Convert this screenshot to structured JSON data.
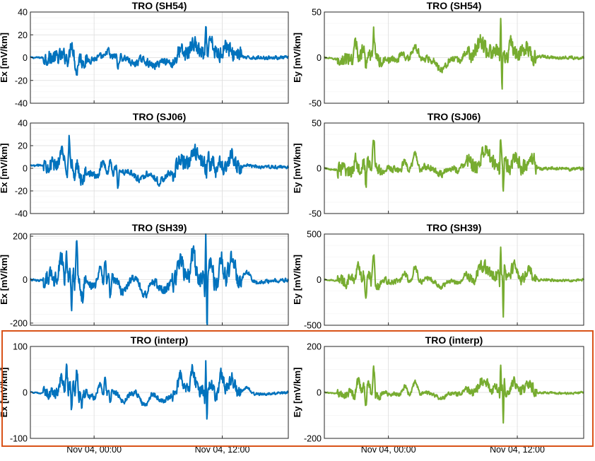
{
  "colors": {
    "ex": "#0072BD",
    "ey": "#77AC30",
    "highlight": "#D95319"
  },
  "x_tick_labels": [
    "Nov 04, 00:00",
    "Nov 04, 12:00"
  ],
  "chart_data": [
    {
      "type": "line",
      "panel": "ex-1",
      "title": "TRO (SH54)",
      "ylabel": "Ex [mV/km]",
      "ylim": [
        -40,
        40
      ],
      "yticks": [
        -40,
        -20,
        0,
        20,
        40
      ],
      "color": "ex",
      "amp": 13,
      "events": [
        [
          0.16,
          1.0,
          0.012
        ],
        [
          0.18,
          -0.9,
          0.01
        ],
        [
          0.3,
          0.4,
          0.012
        ],
        [
          0.34,
          -0.7,
          0.008
        ],
        [
          0.4,
          -0.3,
          0.03
        ],
        [
          0.48,
          -0.3,
          0.04
        ],
        [
          0.58,
          0.5,
          0.03
        ],
        [
          0.63,
          0.6,
          0.04
        ],
        [
          0.68,
          1.4,
          0.006
        ],
        [
          0.7,
          0.5,
          0.02
        ],
        [
          0.76,
          0.6,
          0.03
        ],
        [
          0.8,
          0.3,
          0.03
        ]
      ],
      "x": [
        0.0,
        0.05,
        0.1,
        0.15,
        0.2,
        0.25,
        0.3,
        0.35,
        0.4,
        0.45,
        0.5,
        0.55,
        0.6,
        0.65,
        0.7,
        0.75,
        0.8,
        0.85,
        0.9,
        0.95,
        1.0
      ],
      "values": [
        0,
        0,
        0,
        2,
        -3,
        -1,
        2,
        -1,
        -2,
        -4,
        -3,
        -4,
        3,
        5,
        7,
        4,
        2,
        0,
        0,
        0,
        0
      ]
    },
    {
      "type": "line",
      "panel": "ey-1",
      "title": "TRO (SH54)",
      "ylabel": "Ey [mV/km]",
      "ylim": [
        -50,
        50
      ],
      "yticks": [
        -50,
        0,
        50
      ],
      "color": "ey",
      "amp": 16,
      "events": [
        [
          0.12,
          0.8,
          0.015
        ],
        [
          0.16,
          -0.9,
          0.01
        ],
        [
          0.19,
          1.6,
          0.008
        ],
        [
          0.22,
          -0.5,
          0.02
        ],
        [
          0.3,
          0.4,
          0.02
        ],
        [
          0.35,
          0.5,
          0.03
        ],
        [
          0.45,
          -0.4,
          0.04
        ],
        [
          0.55,
          0.5,
          0.03
        ],
        [
          0.6,
          0.8,
          0.04
        ],
        [
          0.68,
          2.2,
          0.004
        ],
        [
          0.685,
          -2.0,
          0.004
        ],
        [
          0.72,
          0.7,
          0.02
        ],
        [
          0.78,
          0.5,
          0.03
        ]
      ],
      "x": [
        0.0,
        0.05,
        0.1,
        0.15,
        0.2,
        0.25,
        0.3,
        0.35,
        0.4,
        0.45,
        0.5,
        0.55,
        0.6,
        0.65,
        0.7,
        0.75,
        0.8,
        0.85,
        0.9,
        0.95,
        1.0
      ],
      "values": [
        0,
        -2,
        -1,
        6,
        3,
        -3,
        0,
        3,
        -2,
        -6,
        -3,
        0,
        5,
        8,
        3,
        5,
        3,
        1,
        0,
        0,
        0
      ]
    },
    {
      "type": "line",
      "panel": "ex-2",
      "title": "TRO (SJ06)",
      "ylabel": "Ex [mV/km]",
      "ylim": [
        -40,
        40
      ],
      "yticks": [
        -40,
        -20,
        0,
        20,
        40
      ],
      "color": "ex",
      "amp": 13,
      "events": [
        [
          0.12,
          0.8,
          0.02
        ],
        [
          0.15,
          1.8,
          0.006
        ],
        [
          0.17,
          -1.0,
          0.01
        ],
        [
          0.2,
          -0.5,
          0.02
        ],
        [
          0.28,
          0.6,
          0.02
        ],
        [
          0.31,
          0.7,
          0.01
        ],
        [
          0.34,
          -1.2,
          0.006
        ],
        [
          0.42,
          -0.4,
          0.04
        ],
        [
          0.5,
          -0.4,
          0.04
        ],
        [
          0.58,
          0.5,
          0.03
        ],
        [
          0.64,
          0.6,
          0.04
        ],
        [
          0.69,
          1.2,
          0.006
        ],
        [
          0.72,
          -0.7,
          0.01
        ],
        [
          0.78,
          0.5,
          0.03
        ]
      ],
      "x": [
        0.0,
        0.05,
        0.1,
        0.15,
        0.2,
        0.25,
        0.3,
        0.35,
        0.4,
        0.45,
        0.5,
        0.55,
        0.6,
        0.65,
        0.7,
        0.75,
        0.8,
        0.85,
        0.9,
        0.95,
        1.0
      ],
      "values": [
        2,
        3,
        4,
        6,
        -3,
        -6,
        0,
        -3,
        -4,
        -6,
        -7,
        -5,
        5,
        5,
        3,
        4,
        3,
        2,
        1,
        1,
        1
      ]
    },
    {
      "type": "line",
      "panel": "ey-2",
      "title": "TRO (SJ06)",
      "ylabel": "Ey [mV/km]",
      "ylim": [
        -50,
        50
      ],
      "yticks": [
        -50,
        0,
        50
      ],
      "color": "ey",
      "amp": 16,
      "events": [
        [
          0.12,
          0.7,
          0.015
        ],
        [
          0.16,
          -1.4,
          0.008
        ],
        [
          0.19,
          1.3,
          0.01
        ],
        [
          0.22,
          -0.5,
          0.02
        ],
        [
          0.31,
          0.4,
          0.02
        ],
        [
          0.35,
          0.8,
          0.02
        ],
        [
          0.45,
          -0.3,
          0.04
        ],
        [
          0.55,
          0.5,
          0.03
        ],
        [
          0.62,
          0.7,
          0.04
        ],
        [
          0.68,
          1.7,
          0.005
        ],
        [
          0.69,
          -1.6,
          0.005
        ],
        [
          0.74,
          0.6,
          0.02
        ],
        [
          0.8,
          0.4,
          0.03
        ]
      ],
      "x": [
        0.0,
        0.05,
        0.1,
        0.15,
        0.2,
        0.25,
        0.3,
        0.35,
        0.4,
        0.45,
        0.5,
        0.55,
        0.6,
        0.65,
        0.7,
        0.75,
        0.8,
        0.85,
        0.9,
        0.95,
        1.0
      ],
      "values": [
        0,
        -2,
        -3,
        5,
        4,
        -2,
        0,
        3,
        0,
        -2,
        -1,
        1,
        6,
        8,
        4,
        4,
        2,
        0,
        0,
        -1,
        0
      ]
    },
    {
      "type": "line",
      "panel": "ex-3",
      "title": "TRO (SH39)",
      "ylabel": "Ex [mV/km]",
      "ylim": [
        -210,
        210
      ],
      "yticks": [
        -200,
        0,
        200
      ],
      "color": "ex",
      "amp": 80,
      "events": [
        [
          0.07,
          -0.6,
          0.006
        ],
        [
          0.12,
          0.8,
          0.02
        ],
        [
          0.14,
          1.5,
          0.008
        ],
        [
          0.16,
          -1.8,
          0.006
        ],
        [
          0.18,
          1.8,
          0.008
        ],
        [
          0.2,
          -0.8,
          0.01
        ],
        [
          0.27,
          0.7,
          0.02
        ],
        [
          0.29,
          1.2,
          0.008
        ],
        [
          0.31,
          -1.0,
          0.008
        ],
        [
          0.36,
          -0.5,
          0.03
        ],
        [
          0.44,
          -0.6,
          0.03
        ],
        [
          0.52,
          -0.4,
          0.04
        ],
        [
          0.58,
          1.0,
          0.02
        ],
        [
          0.63,
          1.2,
          0.02
        ],
        [
          0.68,
          2.3,
          0.004
        ],
        [
          0.685,
          -2.5,
          0.004
        ],
        [
          0.7,
          1.0,
          0.02
        ],
        [
          0.74,
          1.2,
          0.02
        ],
        [
          0.78,
          0.8,
          0.03
        ],
        [
          0.84,
          0.4,
          0.03
        ]
      ],
      "x": [
        0.0,
        0.05,
        0.1,
        0.15,
        0.2,
        0.25,
        0.3,
        0.35,
        0.4,
        0.45,
        0.5,
        0.55,
        0.6,
        0.65,
        0.7,
        0.75,
        0.8,
        0.85,
        0.9,
        0.95,
        1.0
      ],
      "values": [
        0,
        -5,
        10,
        40,
        -20,
        -20,
        10,
        -20,
        -10,
        -30,
        -20,
        -10,
        40,
        30,
        -10,
        30,
        20,
        0,
        -10,
        -5,
        0
      ]
    },
    {
      "type": "line",
      "panel": "ey-3",
      "title": "TRO (SH39)",
      "ylabel": "Ey [mV/km]",
      "ylim": [
        -500,
        500
      ],
      "yticks": [
        -500,
        0,
        500
      ],
      "color": "ey",
      "amp": 120,
      "events": [
        [
          0.1,
          0.5,
          0.015
        ],
        [
          0.13,
          1.0,
          0.015
        ],
        [
          0.16,
          -1.5,
          0.008
        ],
        [
          0.19,
          2.2,
          0.008
        ],
        [
          0.21,
          -0.6,
          0.02
        ],
        [
          0.31,
          0.6,
          0.02
        ],
        [
          0.35,
          1.0,
          0.02
        ],
        [
          0.45,
          -0.4,
          0.04
        ],
        [
          0.55,
          0.6,
          0.03
        ],
        [
          0.61,
          0.9,
          0.04
        ],
        [
          0.68,
          2.8,
          0.004
        ],
        [
          0.69,
          -3.3,
          0.004
        ],
        [
          0.73,
          1.0,
          0.02
        ],
        [
          0.79,
          0.6,
          0.03
        ]
      ],
      "x": [
        0.0,
        0.05,
        0.1,
        0.15,
        0.2,
        0.25,
        0.3,
        0.35,
        0.4,
        0.45,
        0.5,
        0.55,
        0.6,
        0.65,
        0.7,
        0.75,
        0.8,
        0.85,
        0.9,
        0.95,
        1.0
      ],
      "values": [
        0,
        -10,
        -20,
        50,
        20,
        -30,
        0,
        20,
        -10,
        -30,
        -20,
        0,
        40,
        70,
        30,
        40,
        20,
        0,
        -10,
        -10,
        0
      ]
    },
    {
      "type": "line",
      "panel": "ex-4",
      "title": "TRO (interp)",
      "ylabel": "Ex [mV/km]",
      "ylim": [
        -100,
        100
      ],
      "yticks": [
        -100,
        0,
        100
      ],
      "color": "ex",
      "amp": 25,
      "events": [
        [
          0.07,
          -0.4,
          0.006
        ],
        [
          0.12,
          0.8,
          0.02
        ],
        [
          0.14,
          1.7,
          0.008
        ],
        [
          0.16,
          -2.0,
          0.006
        ],
        [
          0.18,
          2.0,
          0.008
        ],
        [
          0.2,
          -0.8,
          0.01
        ],
        [
          0.27,
          0.8,
          0.02
        ],
        [
          0.29,
          1.3,
          0.008
        ],
        [
          0.31,
          -1.2,
          0.008
        ],
        [
          0.36,
          -0.5,
          0.03
        ],
        [
          0.44,
          -0.7,
          0.03
        ],
        [
          0.52,
          -0.4,
          0.04
        ],
        [
          0.58,
          1.2,
          0.02
        ],
        [
          0.63,
          1.4,
          0.02
        ],
        [
          0.68,
          2.3,
          0.004
        ],
        [
          0.685,
          -2.1,
          0.004
        ],
        [
          0.7,
          1.0,
          0.02
        ],
        [
          0.74,
          1.3,
          0.02
        ],
        [
          0.78,
          0.8,
          0.03
        ],
        [
          0.84,
          0.4,
          0.03
        ]
      ],
      "x": [
        0.0,
        0.05,
        0.1,
        0.15,
        0.2,
        0.25,
        0.3,
        0.35,
        0.4,
        0.45,
        0.5,
        0.55,
        0.6,
        0.65,
        0.7,
        0.75,
        0.8,
        0.85,
        0.9,
        0.95,
        1.0
      ],
      "values": [
        0,
        -2,
        5,
        15,
        -8,
        -8,
        5,
        -8,
        -5,
        -12,
        -10,
        -5,
        15,
        12,
        -5,
        12,
        8,
        0,
        -4,
        -2,
        0
      ]
    },
    {
      "type": "line",
      "panel": "ey-4",
      "title": "TRO (interp)",
      "ylabel": "Ey [mV/km]",
      "ylim": [
        -200,
        200
      ],
      "yticks": [
        -200,
        0,
        200
      ],
      "color": "ey",
      "amp": 40,
      "events": [
        [
          0.1,
          0.5,
          0.015
        ],
        [
          0.13,
          1.0,
          0.015
        ],
        [
          0.16,
          -1.6,
          0.008
        ],
        [
          0.19,
          2.2,
          0.008
        ],
        [
          0.21,
          -0.6,
          0.02
        ],
        [
          0.31,
          0.6,
          0.02
        ],
        [
          0.35,
          0.9,
          0.02
        ],
        [
          0.45,
          -0.4,
          0.04
        ],
        [
          0.55,
          0.6,
          0.03
        ],
        [
          0.61,
          0.9,
          0.04
        ],
        [
          0.68,
          2.7,
          0.004
        ],
        [
          0.69,
          -3.2,
          0.004
        ],
        [
          0.73,
          1.0,
          0.02
        ],
        [
          0.79,
          0.6,
          0.03
        ]
      ],
      "x": [
        0.0,
        0.05,
        0.1,
        0.15,
        0.2,
        0.25,
        0.3,
        0.35,
        0.4,
        0.45,
        0.5,
        0.55,
        0.6,
        0.65,
        0.7,
        0.75,
        0.8,
        0.85,
        0.9,
        0.95,
        1.0
      ],
      "values": [
        0,
        -5,
        -8,
        20,
        8,
        -10,
        0,
        8,
        -5,
        -10,
        -8,
        0,
        15,
        25,
        10,
        15,
        8,
        0,
        -4,
        -4,
        0
      ]
    }
  ]
}
